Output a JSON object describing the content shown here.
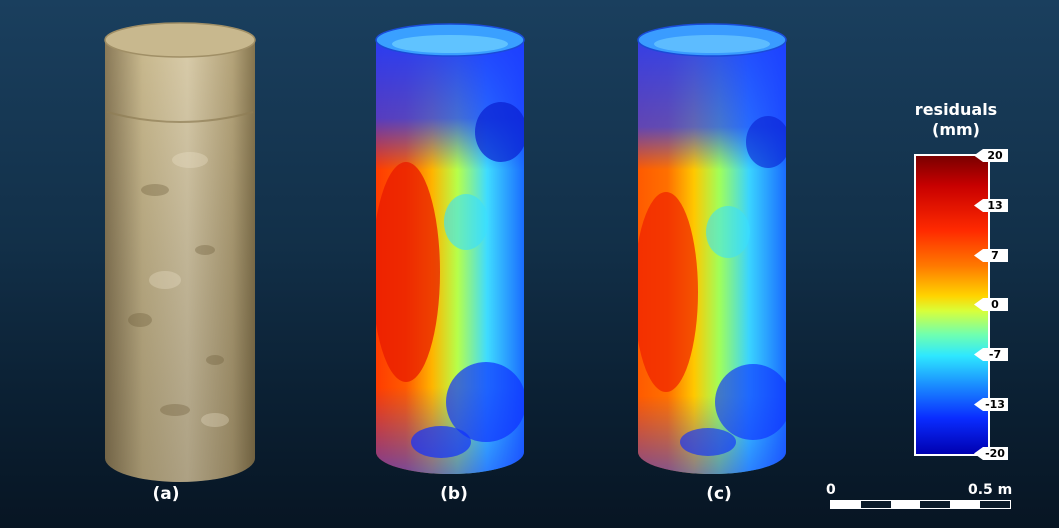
{
  "panels": [
    {
      "label": "(a)",
      "kind": "photo"
    },
    {
      "label": "(b)",
      "kind": "residual-map"
    },
    {
      "label": "(c)",
      "kind": "residual-map"
    }
  ],
  "colorbar": {
    "title": "residuals",
    "unit": "(mm)",
    "ticks": [
      "20",
      "13",
      "7",
      "0",
      "-7",
      "-13",
      "-20"
    ],
    "colors": [
      "#7a0000",
      "#ff2a00",
      "#ffd400",
      "#6fffb0",
      "#2ee8ff",
      "#0a2cff",
      "#0000b0"
    ]
  },
  "scalebar": {
    "start": "0",
    "end": "0.5 m"
  }
}
